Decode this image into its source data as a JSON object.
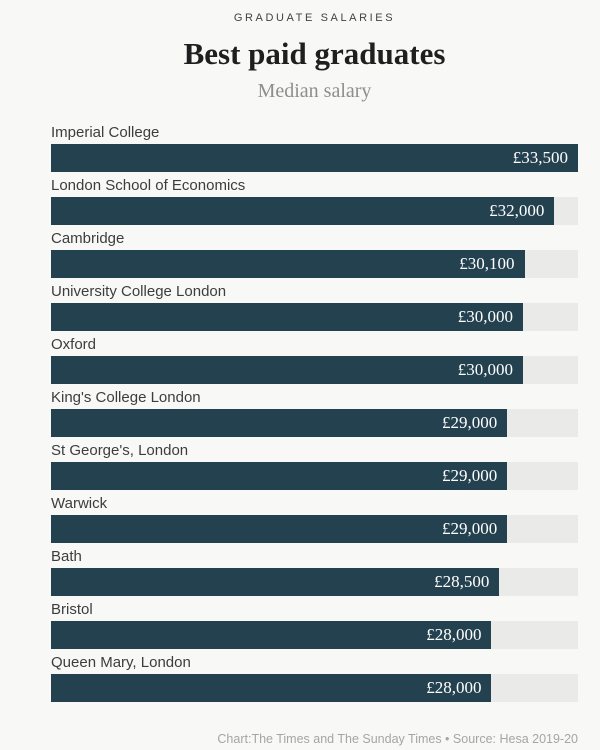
{
  "header": {
    "kicker": "GRADUATE SALARIES",
    "title": "Best paid graduates",
    "subtitle": "Median salary"
  },
  "chart_data": {
    "type": "bar",
    "orientation": "horizontal",
    "title": "Best paid graduates",
    "subtitle": "Median salary",
    "xlabel": "",
    "ylabel": "",
    "xlim": [
      0,
      33500
    ],
    "grid": false,
    "legend": "none",
    "bar_color": "#24414f",
    "track_color": "#eaeae8",
    "categories": [
      "Imperial College",
      "London School of Economics",
      "Cambridge",
      "University College London",
      "Oxford",
      "King's College London",
      "St George's, London",
      "Warwick",
      "Bath",
      "Bristol",
      "Queen Mary, London"
    ],
    "values": [
      33500,
      32000,
      30100,
      30000,
      30000,
      29000,
      29000,
      29000,
      28500,
      28000,
      28000
    ],
    "value_labels": [
      "£33,500",
      "£32,000",
      "£30,100",
      "£30,000",
      "£30,000",
      "£29,000",
      "£29,000",
      "£29,000",
      "£28,500",
      "£28,000",
      "£28,000"
    ]
  },
  "footer": {
    "credit": "Chart:The Times and The Sunday Times • Source: Hesa 2019-20"
  }
}
